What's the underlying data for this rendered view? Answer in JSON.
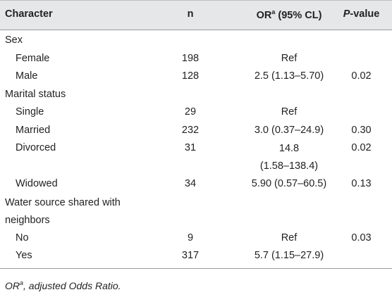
{
  "header": {
    "character": "Character",
    "n": "n",
    "or_main": "OR",
    "or_sup": "a",
    "or_rest": " (95% CL)",
    "p_italic": "P",
    "p_rest": "-value"
  },
  "rows": [
    {
      "character": "Sex",
      "n": "",
      "or": "",
      "p": ""
    },
    {
      "character": "Female",
      "n": "198",
      "or": "Ref",
      "p": ""
    },
    {
      "character": "Male",
      "n": "128",
      "or": "2.5 (1.13–5.70)",
      "p": "0.02"
    },
    {
      "character": "Marital status",
      "n": "",
      "or": "",
      "p": ""
    },
    {
      "character": "Single",
      "n": "29",
      "or": "Ref",
      "p": ""
    },
    {
      "character": "Married",
      "n": "232",
      "or": "3.0 (0.37–24.9)",
      "p": "0.30"
    },
    {
      "character": "Divorced",
      "n": "31",
      "or_line1": "14.8",
      "or_line2": "(1.58–138.4)",
      "p": "0.02"
    },
    {
      "character": "Widowed",
      "n": "34",
      "or": "5.90 (0.57–60.5)",
      "p": "0.13"
    },
    {
      "character_line1": "Water source shared with",
      "character_line2": "neighbors",
      "n": "",
      "or": "",
      "p": ""
    },
    {
      "character": "No",
      "n": "9",
      "or": "Ref",
      "p": "0.03"
    },
    {
      "character": "Yes",
      "n": "317",
      "or": "5.7 (1.15–27.9)",
      "p": ""
    }
  ],
  "footnote": {
    "main": "OR",
    "sup": "a",
    "rest": ", adjusted Odds Ratio."
  }
}
